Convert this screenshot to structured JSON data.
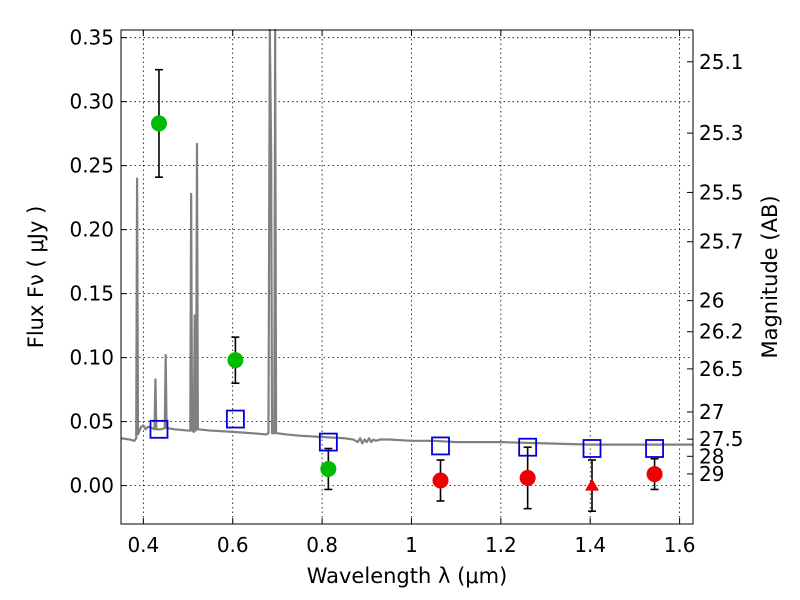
{
  "chart_data": {
    "type": "scatter",
    "xlabel": "Wavelength  λ (μm)",
    "ylabel": "Flux  Fν  ( μJy )",
    "y2label": "Magnitude (AB)",
    "xlim": [
      0.35,
      1.63
    ],
    "ylim": [
      -0.03,
      0.356
    ],
    "grid": true,
    "x_ticks": [
      {
        "value": 0.4,
        "label": "0.4"
      },
      {
        "value": 0.6,
        "label": "0.6"
      },
      {
        "value": 0.8,
        "label": "0.8"
      },
      {
        "value": 1.0,
        "label": "1"
      },
      {
        "value": 1.2,
        "label": "1.2"
      },
      {
        "value": 1.4,
        "label": "1.4"
      },
      {
        "value": 1.6,
        "label": "1.6"
      }
    ],
    "y_ticks": [
      {
        "value": 0.0,
        "label": "0.00"
      },
      {
        "value": 0.05,
        "label": "0.05"
      },
      {
        "value": 0.1,
        "label": "0.10"
      },
      {
        "value": 0.15,
        "label": "0.15"
      },
      {
        "value": 0.2,
        "label": "0.20"
      },
      {
        "value": 0.25,
        "label": "0.25"
      },
      {
        "value": 0.3,
        "label": "0.30"
      },
      {
        "value": 0.35,
        "label": "0.35"
      }
    ],
    "y2_ticks": [
      {
        "mag": 25.1,
        "label": "25.1"
      },
      {
        "mag": 25.3,
        "label": "25.3"
      },
      {
        "mag": 25.5,
        "label": "25.5"
      },
      {
        "mag": 25.7,
        "label": "25.7"
      },
      {
        "mag": 26.0,
        "label": "26"
      },
      {
        "mag": 26.2,
        "label": "26.2"
      },
      {
        "mag": 26.5,
        "label": "26.5"
      },
      {
        "mag": 27.0,
        "label": "27"
      },
      {
        "mag": 27.5,
        "label": "27.5"
      },
      {
        "mag": 28.0,
        "label": "28"
      },
      {
        "mag": 29.0,
        "label": "29"
      }
    ],
    "colors": {
      "sed": "#808080",
      "green": "#00bb00",
      "red": "#ee0000",
      "model": "#0000dd",
      "errorbar": "#000000"
    },
    "series": [
      {
        "name": "detections-green",
        "marker": "circle",
        "points": [
          {
            "x": 0.435,
            "y": 0.283,
            "err": 0.042
          },
          {
            "x": 0.606,
            "y": 0.098,
            "err": 0.018
          },
          {
            "x": 0.814,
            "y": 0.013,
            "err": 0.016
          }
        ]
      },
      {
        "name": "detections-red",
        "marker": "circle",
        "points": [
          {
            "x": 1.065,
            "y": 0.004,
            "err": 0.016
          },
          {
            "x": 1.26,
            "y": 0.006,
            "err": 0.024
          },
          {
            "x": 1.544,
            "y": 0.009,
            "err": 0.012
          }
        ]
      },
      {
        "name": "upper-limit-red",
        "marker": "triangle",
        "points": [
          {
            "x": 1.404,
            "y": 0.0,
            "err": 0.02
          }
        ]
      },
      {
        "name": "model-photometry",
        "marker": "square",
        "points": [
          {
            "x": 0.435,
            "y": 0.044
          },
          {
            "x": 0.606,
            "y": 0.052
          },
          {
            "x": 0.814,
            "y": 0.034
          },
          {
            "x": 1.065,
            "y": 0.031
          },
          {
            "x": 1.26,
            "y": 0.03
          },
          {
            "x": 1.404,
            "y": 0.029
          },
          {
            "x": 1.544,
            "y": 0.029
          }
        ]
      }
    ],
    "sed_spectrum": [
      [
        0.35,
        0.037
      ],
      [
        0.37,
        0.036
      ],
      [
        0.38,
        0.035
      ],
      [
        0.384,
        0.037
      ],
      [
        0.386,
        0.24
      ],
      [
        0.388,
        0.04
      ],
      [
        0.395,
        0.046
      ],
      [
        0.4,
        0.047
      ],
      [
        0.405,
        0.044
      ],
      [
        0.41,
        0.046
      ],
      [
        0.42,
        0.045
      ],
      [
        0.425,
        0.044
      ],
      [
        0.427,
        0.083
      ],
      [
        0.429,
        0.044
      ],
      [
        0.44,
        0.044
      ],
      [
        0.448,
        0.045
      ],
      [
        0.45,
        0.102
      ],
      [
        0.452,
        0.045
      ],
      [
        0.47,
        0.044
      ],
      [
        0.5,
        0.043
      ],
      [
        0.505,
        0.043
      ],
      [
        0.507,
        0.228
      ],
      [
        0.509,
        0.043
      ],
      [
        0.513,
        0.042
      ],
      [
        0.515,
        0.133
      ],
      [
        0.517,
        0.043
      ],
      [
        0.518,
        0.044
      ],
      [
        0.52,
        0.267
      ],
      [
        0.522,
        0.044
      ],
      [
        0.55,
        0.043
      ],
      [
        0.6,
        0.042
      ],
      [
        0.64,
        0.041
      ],
      [
        0.675,
        0.04
      ],
      [
        0.68,
        0.041
      ],
      [
        0.683,
        0.356
      ],
      [
        0.686,
        0.26
      ],
      [
        0.688,
        0.041
      ],
      [
        0.693,
        0.041
      ],
      [
        0.695,
        0.356
      ],
      [
        0.697,
        0.041
      ],
      [
        0.72,
        0.04
      ],
      [
        0.75,
        0.039
      ],
      [
        0.8,
        0.038
      ],
      [
        0.85,
        0.037
      ],
      [
        0.87,
        0.036
      ],
      [
        0.88,
        0.034
      ],
      [
        0.885,
        0.037
      ],
      [
        0.89,
        0.033
      ],
      [
        0.895,
        0.036
      ],
      [
        0.9,
        0.034
      ],
      [
        0.905,
        0.037
      ],
      [
        0.91,
        0.034
      ],
      [
        0.915,
        0.036
      ],
      [
        0.92,
        0.035
      ],
      [
        0.93,
        0.036
      ],
      [
        0.95,
        0.036
      ],
      [
        1.0,
        0.035
      ],
      [
        1.05,
        0.035
      ],
      [
        1.1,
        0.034
      ],
      [
        1.2,
        0.034
      ],
      [
        1.3,
        0.033
      ],
      [
        1.4,
        0.032
      ],
      [
        1.5,
        0.032
      ],
      [
        1.63,
        0.032
      ]
    ]
  }
}
